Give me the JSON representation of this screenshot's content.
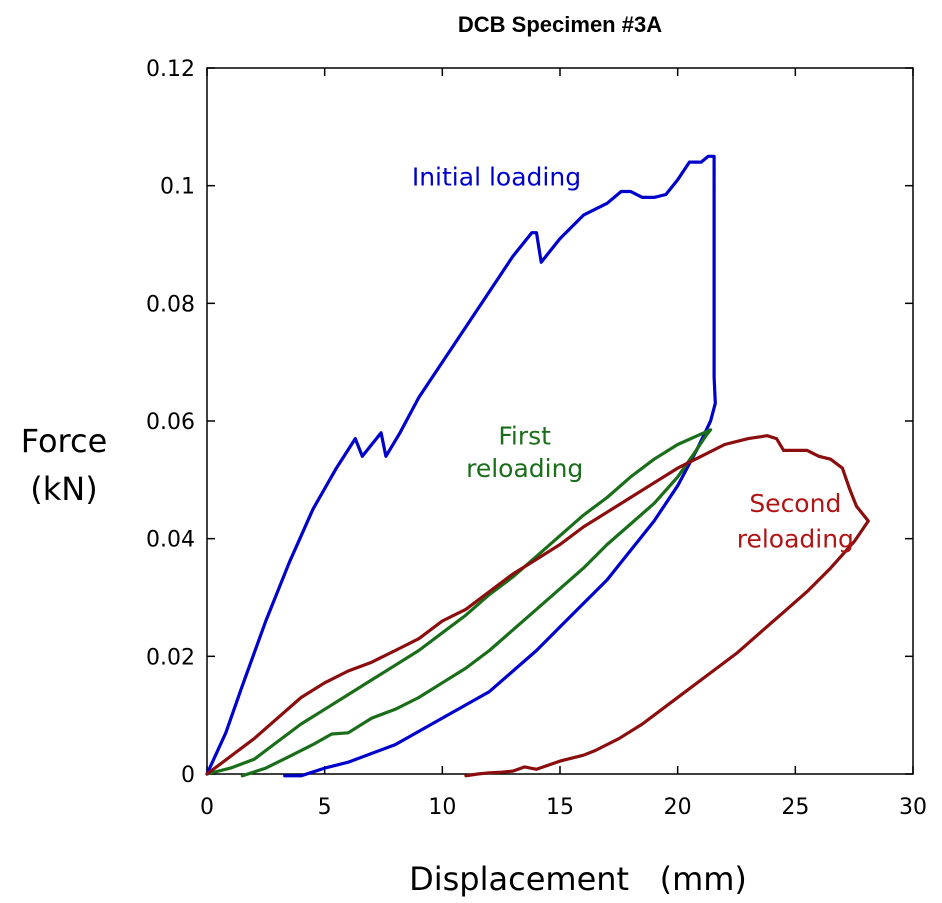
{
  "chart_data": {
    "type": "line",
    "title": "DCB Specimen #3A",
    "xlabel": "Displacement   (mm)",
    "ylabel_lines": [
      "Force",
      "(kN)"
    ],
    "xlim": [
      0,
      30
    ],
    "ylim": [
      0,
      0.12
    ],
    "xticks": [
      0,
      5,
      10,
      15,
      20,
      25,
      30
    ],
    "xtick_labels": [
      "0",
      "5",
      "10",
      "15",
      "20",
      "25",
      "30"
    ],
    "yticks": [
      0,
      0.02,
      0.04,
      0.06,
      0.08,
      0.1,
      0.12
    ],
    "ytick_labels": [
      "0",
      "0.02",
      "0.04",
      "0.06",
      "0.08",
      "0.1",
      "0.12"
    ],
    "grid": false,
    "legend": "none",
    "series": [
      {
        "name": "Initial  loading",
        "color": "#0000cc",
        "points": [
          [
            0,
            0
          ],
          [
            0.8,
            0.007
          ],
          [
            1.5,
            0.015
          ],
          [
            2.5,
            0.026
          ],
          [
            3.5,
            0.036
          ],
          [
            4.5,
            0.045
          ],
          [
            5.5,
            0.052
          ],
          [
            6.3,
            0.057
          ],
          [
            6.6,
            0.054
          ],
          [
            7.0,
            0.056
          ],
          [
            7.4,
            0.058
          ],
          [
            7.6,
            0.054
          ],
          [
            8.2,
            0.058
          ],
          [
            9.0,
            0.064
          ],
          [
            10.0,
            0.07
          ],
          [
            11.0,
            0.076
          ],
          [
            12.0,
            0.082
          ],
          [
            13.0,
            0.088
          ],
          [
            13.8,
            0.092
          ],
          [
            14.0,
            0.092
          ],
          [
            14.2,
            0.087
          ],
          [
            15.0,
            0.091
          ],
          [
            16.0,
            0.095
          ],
          [
            17.0,
            0.097
          ],
          [
            17.6,
            0.099
          ],
          [
            18.0,
            0.099
          ],
          [
            18.5,
            0.098
          ],
          [
            19.0,
            0.098
          ],
          [
            19.5,
            0.0985
          ],
          [
            20.0,
            0.101
          ],
          [
            20.5,
            0.104
          ],
          [
            21.0,
            0.104
          ],
          [
            21.3,
            0.105
          ],
          [
            21.55,
            0.105
          ],
          [
            21.55,
            0.0675
          ],
          [
            21.6,
            0.063
          ],
          [
            21.4,
            0.06
          ],
          [
            20.8,
            0.055
          ],
          [
            20.0,
            0.049
          ],
          [
            19.0,
            0.043
          ],
          [
            18.0,
            0.038
          ],
          [
            17.0,
            0.033
          ],
          [
            16.0,
            0.029
          ],
          [
            15.0,
            0.025
          ],
          [
            14.0,
            0.021
          ],
          [
            12.0,
            0.014
          ],
          [
            10.0,
            0.0095
          ],
          [
            8.0,
            0.005
          ],
          [
            6.0,
            0.002
          ],
          [
            5.0,
            0.001
          ],
          [
            4.0,
            -0.0003
          ],
          [
            3.3,
            -0.0003
          ]
        ]
      },
      {
        "name": "First reloading",
        "color": "#1a6e1a",
        "points": [
          [
            1.5,
            -0.0003
          ],
          [
            2.5,
            0.001
          ],
          [
            3.5,
            0.003
          ],
          [
            4.5,
            0.005
          ],
          [
            5.3,
            0.0068
          ],
          [
            6.0,
            0.007
          ],
          [
            7.0,
            0.0095
          ],
          [
            8.0,
            0.011
          ],
          [
            9.0,
            0.013
          ],
          [
            10.0,
            0.0155
          ],
          [
            11.0,
            0.018
          ],
          [
            12.0,
            0.021
          ],
          [
            13.0,
            0.0245
          ],
          [
            14.0,
            0.028
          ],
          [
            15.0,
            0.0315
          ],
          [
            16.0,
            0.035
          ],
          [
            17.0,
            0.039
          ],
          [
            18.0,
            0.0425
          ],
          [
            19.0,
            0.046
          ],
          [
            20.0,
            0.0505
          ],
          [
            20.7,
            0.0545
          ],
          [
            21.2,
            0.0575
          ],
          [
            21.4,
            0.0585
          ],
          [
            20.0,
            0.056
          ],
          [
            19.0,
            0.0535
          ],
          [
            18.0,
            0.0505
          ],
          [
            17.0,
            0.047
          ],
          [
            16.0,
            0.044
          ],
          [
            15.0,
            0.0405
          ],
          [
            14.0,
            0.037
          ],
          [
            13.0,
            0.0335
          ],
          [
            12.0,
            0.0305
          ],
          [
            11.0,
            0.027
          ],
          [
            10.0,
            0.024
          ],
          [
            9.0,
            0.021
          ],
          [
            8.0,
            0.0185
          ],
          [
            7.0,
            0.016
          ],
          [
            6.0,
            0.0135
          ],
          [
            5.0,
            0.011
          ],
          [
            4.0,
            0.0085
          ],
          [
            3.0,
            0.0055
          ],
          [
            2.0,
            0.0025
          ],
          [
            1.0,
            0.001
          ],
          [
            0,
            0
          ]
        ]
      },
      {
        "name": "Second reloading",
        "color": "#8b0d0d",
        "points": [
          [
            0,
            0
          ],
          [
            1.0,
            0.003
          ],
          [
            2.0,
            0.006
          ],
          [
            3.0,
            0.0095
          ],
          [
            4.0,
            0.013
          ],
          [
            5.0,
            0.0155
          ],
          [
            6.0,
            0.0175
          ],
          [
            7.0,
            0.019
          ],
          [
            8.0,
            0.021
          ],
          [
            9.0,
            0.023
          ],
          [
            10.0,
            0.026
          ],
          [
            11.0,
            0.028
          ],
          [
            12.0,
            0.031
          ],
          [
            13.0,
            0.034
          ],
          [
            14.0,
            0.0365
          ],
          [
            15.0,
            0.039
          ],
          [
            16.0,
            0.042
          ],
          [
            17.0,
            0.0445
          ],
          [
            18.0,
            0.047
          ],
          [
            19.0,
            0.0495
          ],
          [
            20.0,
            0.052
          ],
          [
            21.0,
            0.054
          ],
          [
            22.0,
            0.056
          ],
          [
            23.0,
            0.057
          ],
          [
            23.8,
            0.0575
          ],
          [
            24.2,
            0.057
          ],
          [
            24.5,
            0.055
          ],
          [
            25.0,
            0.055
          ],
          [
            25.5,
            0.055
          ],
          [
            26.0,
            0.054
          ],
          [
            26.5,
            0.0535
          ],
          [
            27.0,
            0.052
          ],
          [
            27.3,
            0.0485
          ],
          [
            27.6,
            0.0455
          ],
          [
            28.1,
            0.043
          ],
          [
            27.5,
            0.0395
          ],
          [
            26.5,
            0.035
          ],
          [
            25.5,
            0.031
          ],
          [
            24.5,
            0.0275
          ],
          [
            23.5,
            0.024
          ],
          [
            22.5,
            0.0205
          ],
          [
            21.5,
            0.0175
          ],
          [
            20.5,
            0.0145
          ],
          [
            19.5,
            0.0115
          ],
          [
            18.5,
            0.0085
          ],
          [
            17.5,
            0.006
          ],
          [
            16.5,
            0.004
          ],
          [
            16.0,
            0.0032
          ],
          [
            15.0,
            0.0022
          ],
          [
            14.0,
            0.0008
          ],
          [
            13.5,
            0.0012
          ],
          [
            13.0,
            0.0005
          ],
          [
            12.5,
            0.0003
          ],
          [
            12.0,
            0.0002
          ],
          [
            11.5,
            0.0
          ],
          [
            11.0,
            -0.0003
          ]
        ]
      }
    ],
    "annotations": [
      {
        "text": "Initial  loading",
        "color": "#0000cc",
        "x": 12.3,
        "y": 0.1
      },
      {
        "text": "First",
        "color": "#1a6e1a",
        "x": 13.5,
        "y": 0.056
      },
      {
        "text": "reloading",
        "color": "#1a6e1a",
        "x": 13.5,
        "y": 0.0505
      },
      {
        "text": "Second",
        "color": "#b01515",
        "x": 25.0,
        "y": 0.0445
      },
      {
        "text": "reloading",
        "color": "#b01515",
        "x": 25.0,
        "y": 0.0385
      }
    ]
  }
}
